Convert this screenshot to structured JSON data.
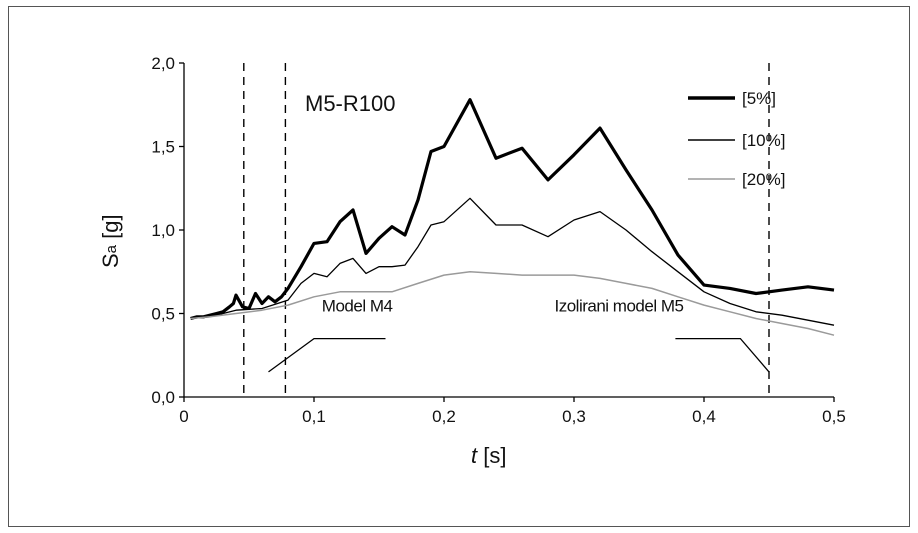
{
  "chart_data": {
    "type": "line",
    "title": "M5-R100",
    "xlabel_var": "t",
    "xlabel_unit": " [s]",
    "ylabel_var": "S",
    "ylabel_sub": "a",
    "ylabel_unit": " [g]",
    "xlim": [
      0,
      0.5
    ],
    "ylim": [
      0,
      2.0
    ],
    "x_ticks": [
      0,
      0.1,
      0.2,
      0.3,
      0.4,
      0.5
    ],
    "x_tick_labels": [
      "0",
      "0,1",
      "0,2",
      "0,3",
      "0,4",
      "0,5"
    ],
    "y_ticks": [
      0,
      0.5,
      1.0,
      1.5,
      2.0
    ],
    "y_tick_labels": [
      "0,0",
      "0,5",
      "1,0",
      "1,5",
      "2,0"
    ],
    "grid": false,
    "legend_position": "top-right",
    "series": [
      {
        "name": "[5%]",
        "color": "#000000",
        "points": [
          [
            0.005,
            0.47
          ],
          [
            0.01,
            0.48
          ],
          [
            0.015,
            0.48
          ],
          [
            0.02,
            0.49
          ],
          [
            0.025,
            0.5
          ],
          [
            0.03,
            0.51
          ],
          [
            0.035,
            0.54
          ],
          [
            0.038,
            0.56
          ],
          [
            0.04,
            0.61
          ],
          [
            0.045,
            0.54
          ],
          [
            0.05,
            0.53
          ],
          [
            0.055,
            0.62
          ],
          [
            0.06,
            0.56
          ],
          [
            0.065,
            0.6
          ],
          [
            0.07,
            0.57
          ],
          [
            0.075,
            0.6
          ],
          [
            0.08,
            0.65
          ],
          [
            0.09,
            0.78
          ],
          [
            0.1,
            0.92
          ],
          [
            0.11,
            0.93
          ],
          [
            0.12,
            1.05
          ],
          [
            0.13,
            1.12
          ],
          [
            0.14,
            0.86
          ],
          [
            0.15,
            0.95
          ],
          [
            0.16,
            1.02
          ],
          [
            0.17,
            0.97
          ],
          [
            0.18,
            1.18
          ],
          [
            0.19,
            1.47
          ],
          [
            0.2,
            1.5
          ],
          [
            0.22,
            1.78
          ],
          [
            0.24,
            1.43
          ],
          [
            0.26,
            1.49
          ],
          [
            0.28,
            1.3
          ],
          [
            0.3,
            1.45
          ],
          [
            0.32,
            1.61
          ],
          [
            0.34,
            1.36
          ],
          [
            0.36,
            1.12
          ],
          [
            0.38,
            0.85
          ],
          [
            0.4,
            0.67
          ],
          [
            0.42,
            0.65
          ],
          [
            0.44,
            0.62
          ],
          [
            0.46,
            0.64
          ],
          [
            0.48,
            0.66
          ],
          [
            0.5,
            0.64
          ]
        ]
      },
      {
        "name": "[10%]",
        "color": "#000000",
        "points": [
          [
            0.005,
            0.47
          ],
          [
            0.02,
            0.48
          ],
          [
            0.04,
            0.52
          ],
          [
            0.06,
            0.53
          ],
          [
            0.08,
            0.58
          ],
          [
            0.09,
            0.68
          ],
          [
            0.1,
            0.74
          ],
          [
            0.11,
            0.72
          ],
          [
            0.12,
            0.8
          ],
          [
            0.13,
            0.83
          ],
          [
            0.14,
            0.74
          ],
          [
            0.15,
            0.78
          ],
          [
            0.16,
            0.78
          ],
          [
            0.17,
            0.79
          ],
          [
            0.18,
            0.9
          ],
          [
            0.19,
            1.03
          ],
          [
            0.2,
            1.05
          ],
          [
            0.22,
            1.19
          ],
          [
            0.24,
            1.03
          ],
          [
            0.26,
            1.03
          ],
          [
            0.28,
            0.96
          ],
          [
            0.3,
            1.06
          ],
          [
            0.32,
            1.11
          ],
          [
            0.34,
            1.0
          ],
          [
            0.36,
            0.87
          ],
          [
            0.38,
            0.75
          ],
          [
            0.4,
            0.63
          ],
          [
            0.42,
            0.56
          ],
          [
            0.44,
            0.51
          ],
          [
            0.46,
            0.49
          ],
          [
            0.48,
            0.46
          ],
          [
            0.5,
            0.43
          ]
        ]
      },
      {
        "name": "[20%]",
        "color": "#9a9a9a",
        "points": [
          [
            0.005,
            0.47
          ],
          [
            0.02,
            0.48
          ],
          [
            0.04,
            0.5
          ],
          [
            0.06,
            0.52
          ],
          [
            0.08,
            0.55
          ],
          [
            0.1,
            0.6
          ],
          [
            0.12,
            0.63
          ],
          [
            0.14,
            0.63
          ],
          [
            0.16,
            0.63
          ],
          [
            0.18,
            0.68
          ],
          [
            0.2,
            0.73
          ],
          [
            0.22,
            0.75
          ],
          [
            0.24,
            0.74
          ],
          [
            0.26,
            0.73
          ],
          [
            0.28,
            0.73
          ],
          [
            0.3,
            0.73
          ],
          [
            0.32,
            0.71
          ],
          [
            0.34,
            0.68
          ],
          [
            0.36,
            0.65
          ],
          [
            0.38,
            0.6
          ],
          [
            0.4,
            0.55
          ],
          [
            0.42,
            0.51
          ],
          [
            0.44,
            0.47
          ],
          [
            0.46,
            0.44
          ],
          [
            0.48,
            0.41
          ],
          [
            0.5,
            0.37
          ]
        ]
      }
    ],
    "vertical_lines": [
      0.046,
      0.078,
      0.45
    ],
    "annotations": [
      {
        "text": "Model M4",
        "x": 0.106,
        "y": 0.5,
        "leader": [
          [
            0.065,
            0.15
          ],
          [
            0.1,
            0.35
          ],
          [
            0.155,
            0.35
          ]
        ]
      },
      {
        "text": "Izolirani model M5",
        "x": 0.285,
        "y": 0.5,
        "leader": [
          [
            0.378,
            0.35
          ],
          [
            0.428,
            0.35
          ],
          [
            0.45,
            0.15
          ]
        ]
      }
    ]
  }
}
